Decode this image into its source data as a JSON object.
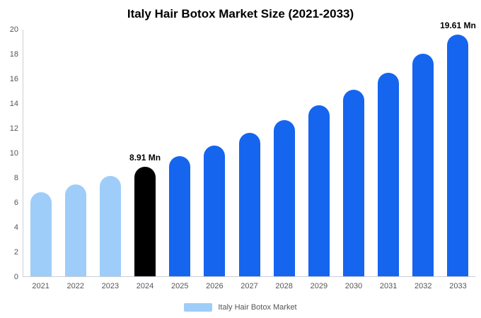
{
  "title": "Italy Hair Botox Market Size (2021-2033)",
  "legend": {
    "label": "Italy Hair Botox Market",
    "swatch_color": "#9ecdf9"
  },
  "colors": {
    "past_bar": "#9ecdf9",
    "current_bar": "#000000",
    "forecast_bar": "#1565ef",
    "axis_line": "#c9ced6",
    "tick_text": "#555555",
    "title_text": "#000000"
  },
  "chart_data": {
    "type": "bar",
    "title": "Italy Hair Botox Market Size (2021-2033)",
    "xlabel": "",
    "ylabel": "",
    "categories": [
      "2021",
      "2022",
      "2023",
      "2024",
      "2025",
      "2026",
      "2027",
      "2028",
      "2029",
      "2030",
      "2031",
      "2032",
      "2033"
    ],
    "values": [
      6.84,
      7.47,
      8.16,
      8.91,
      9.73,
      10.63,
      11.61,
      12.68,
      13.85,
      15.13,
      16.52,
      18.05,
      19.61
    ],
    "unit": "Mn",
    "bar_colors": [
      "#9ecdf9",
      "#9ecdf9",
      "#9ecdf9",
      "#000000",
      "#1565ef",
      "#1565ef",
      "#1565ef",
      "#1565ef",
      "#1565ef",
      "#1565ef",
      "#1565ef",
      "#1565ef",
      "#1565ef"
    ],
    "annotations": [
      {
        "category": "2024",
        "text": "8.91 Mn"
      },
      {
        "category": "2033",
        "text": "19.61 Mn"
      }
    ],
    "ylim": [
      0,
      20
    ],
    "yticks": [
      0,
      2,
      4,
      6,
      8,
      10,
      12,
      14,
      16,
      18,
      20
    ],
    "grid": false,
    "legend_position": "bottom",
    "legend_entries": [
      "Italy Hair Botox Market"
    ]
  }
}
